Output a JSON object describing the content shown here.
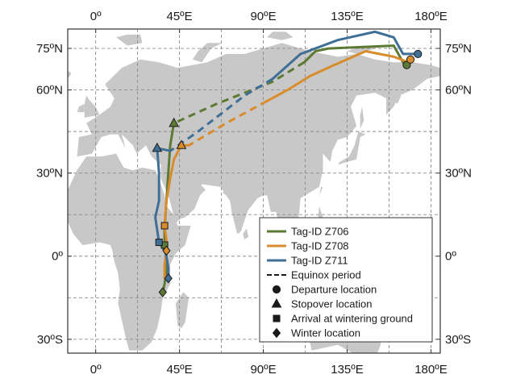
{
  "map": {
    "lon_range": [
      -15,
      185
    ],
    "lat_range": [
      -35,
      82
    ],
    "x_ticks": [
      {
        "lon": 0,
        "label": "0º"
      },
      {
        "lon": 45,
        "label": "45ºE"
      },
      {
        "lon": 90,
        "label": "90ºE"
      },
      {
        "lon": 135,
        "label": "135ºE"
      },
      {
        "lon": 180,
        "label": "180ºE"
      }
    ],
    "y_ticks": [
      {
        "lat": 75,
        "label": "75ºN"
      },
      {
        "lat": 60,
        "label": "60ºN"
      },
      {
        "lat": 30,
        "label": "30ºN"
      },
      {
        "lat": 0,
        "label": "0º"
      },
      {
        "lat": -30,
        "label": "30ºS"
      }
    ],
    "colors": {
      "land": "#c8c8c8",
      "ocean": "#ffffff",
      "grid": "#8c8c8c"
    }
  },
  "tracks": [
    {
      "id": "Z706",
      "label": "Tag-ID Z706",
      "color": "#5d7a35",
      "departure": [
        167,
        69
      ],
      "stopover": [
        42,
        48
      ],
      "arrival": [
        37,
        4
      ],
      "winter": [
        36,
        -13
      ],
      "solid_a": [
        [
          167,
          69
        ],
        [
          165,
          70
        ],
        [
          160,
          76
        ],
        [
          125,
          75
        ],
        [
          118,
          74
        ],
        [
          112,
          70
        ]
      ],
      "dashed": [
        [
          112,
          70
        ],
        [
          95,
          63
        ],
        [
          65,
          55
        ],
        [
          42,
          48
        ]
      ],
      "solid_b": [
        [
          42,
          48
        ],
        [
          40,
          40
        ],
        [
          39,
          30
        ],
        [
          38,
          20
        ],
        [
          37,
          10
        ],
        [
          37,
          4
        ],
        [
          38,
          0
        ],
        [
          38,
          -5
        ],
        [
          37,
          -10
        ],
        [
          36,
          -13
        ]
      ]
    },
    {
      "id": "Z708",
      "label": "Tag-ID Z708",
      "color": "#d98c2c",
      "departure": [
        169,
        71
      ],
      "stopover": [
        46,
        40
      ],
      "arrival": [
        37,
        11
      ],
      "winter": [
        38,
        2
      ],
      "solid_a": [
        [
          169,
          71
        ],
        [
          168,
          70
        ],
        [
          160,
          72
        ],
        [
          145,
          74
        ],
        [
          128,
          69
        ],
        [
          115,
          65
        ],
        [
          103,
          60
        ],
        [
          92,
          56
        ]
      ],
      "dashed": [
        [
          92,
          56
        ],
        [
          70,
          48
        ],
        [
          50,
          40
        ]
      ],
      "solid_b": [
        [
          50,
          40
        ],
        [
          46,
          40
        ],
        [
          42,
          35
        ],
        [
          40,
          28
        ],
        [
          38,
          20
        ],
        [
          37,
          11
        ],
        [
          38,
          6
        ],
        [
          38,
          2
        ],
        [
          37,
          -3
        ],
        [
          37,
          -8
        ]
      ]
    },
    {
      "id": "Z711",
      "label": "Tag-ID Z711",
      "color": "#3f6f96",
      "departure": [
        173,
        73
      ],
      "stopover": [
        33,
        39
      ],
      "arrival": [
        34,
        5
      ],
      "winter": [
        39,
        -8
      ],
      "solid_a": [
        [
          173,
          73
        ],
        [
          165,
          73
        ],
        [
          160,
          79
        ],
        [
          150,
          81
        ],
        [
          130,
          78
        ],
        [
          110,
          73
        ],
        [
          95,
          64
        ]
      ],
      "dashed": [
        [
          95,
          64
        ],
        [
          80,
          58
        ],
        [
          55,
          45
        ],
        [
          40,
          38
        ]
      ],
      "solid_b": [
        [
          40,
          38
        ],
        [
          33,
          39
        ],
        [
          34,
          30
        ],
        [
          34,
          20
        ],
        [
          32,
          14
        ],
        [
          34,
          5
        ],
        [
          37,
          2
        ],
        [
          38,
          0
        ],
        [
          39,
          -4
        ],
        [
          39,
          -8
        ]
      ]
    }
  ],
  "legend": {
    "position": "bottom-right",
    "items": [
      {
        "kind": "line",
        "color": "#5d7a35",
        "label": "Tag-ID Z706"
      },
      {
        "kind": "line",
        "color": "#d98c2c",
        "label": "Tag-ID Z708"
      },
      {
        "kind": "line",
        "color": "#3f6f96",
        "label": "Tag-ID Z711"
      },
      {
        "kind": "dashed",
        "color": "#1a1a1a",
        "label": "Equinox period"
      },
      {
        "kind": "circle",
        "color": "#1a1a1a",
        "label": "Departure location"
      },
      {
        "kind": "triangle",
        "color": "#1a1a1a",
        "label": "Stopover location"
      },
      {
        "kind": "square",
        "color": "#1a1a1a",
        "label": "Arrival at wintering ground"
      },
      {
        "kind": "diamond",
        "color": "#1a1a1a",
        "label": "Winter location"
      }
    ]
  }
}
